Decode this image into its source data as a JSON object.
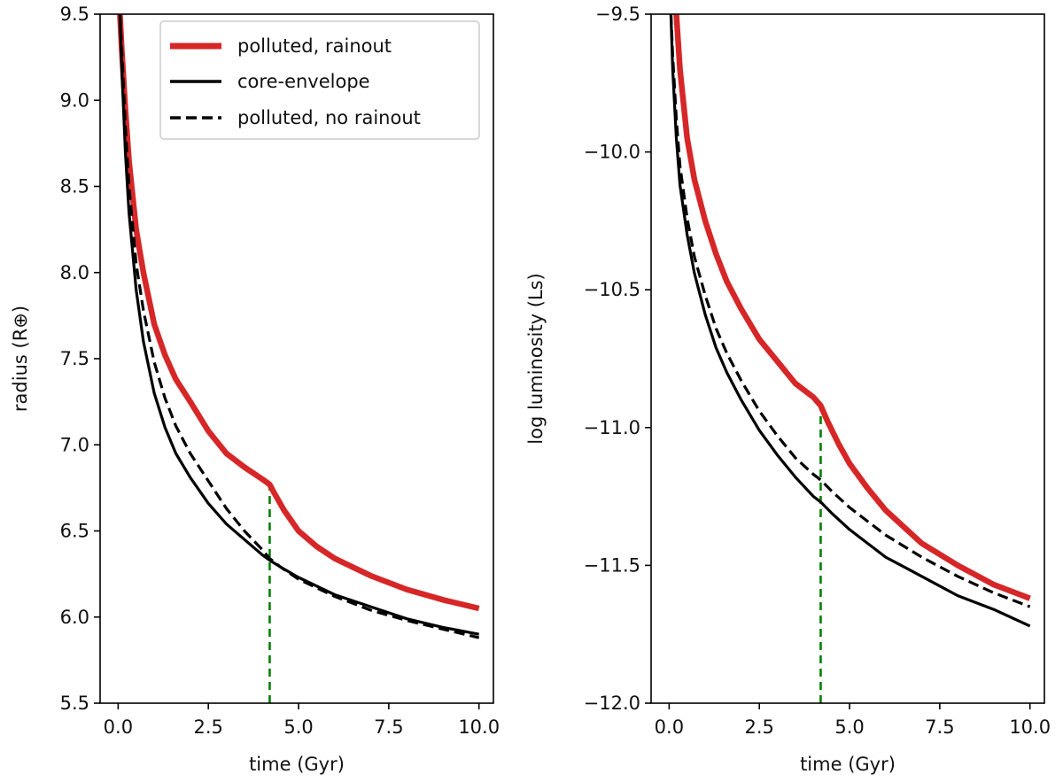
{
  "colors": {
    "rainout": "#d62728",
    "core_envelope": "#000000",
    "no_rainout": "#000000",
    "marker": "#008000",
    "axes": "#000000",
    "legend_border": "#cccccc"
  },
  "chart_data": [
    {
      "type": "line",
      "title": "",
      "xlabel": "time (Gyr)",
      "ylabel": "radius (R⊕)",
      "xlim": [
        -0.5,
        10.4
      ],
      "ylim": [
        5.5,
        9.5
      ],
      "xticks": [
        0.0,
        2.5,
        5.0,
        7.5,
        10.0
      ],
      "xtick_labels": [
        "0.0",
        "2.5",
        "5.0",
        "7.5",
        "10.0"
      ],
      "yticks": [
        5.5,
        6.0,
        6.5,
        7.0,
        7.5,
        8.0,
        8.5,
        9.0,
        9.5
      ],
      "ytick_labels": [
        "5.5",
        "6.0",
        "6.5",
        "7.0",
        "7.5",
        "8.0",
        "8.5",
        "9.0",
        "9.5"
      ],
      "legend": {
        "location": "upper-right",
        "entries": [
          {
            "label": "polluted, rainout",
            "series": "polluted_rainout"
          },
          {
            "label": "core-envelope",
            "series": "core_envelope"
          },
          {
            "label": "polluted, no rainout",
            "series": "polluted_no_rainout"
          }
        ]
      },
      "series": [
        {
          "id": "polluted_rainout",
          "name": "polluted, rainout",
          "style": "solid-thick",
          "x": [
            0.05,
            0.1,
            0.2,
            0.3,
            0.5,
            0.7,
            1.0,
            1.3,
            1.6,
            2.0,
            2.5,
            3.0,
            3.5,
            4.0,
            4.2,
            4.3,
            4.6,
            5.0,
            5.5,
            6.0,
            7.0,
            8.0,
            9.0,
            10.0
          ],
          "y": [
            9.5,
            9.3,
            8.95,
            8.65,
            8.25,
            8.0,
            7.7,
            7.52,
            7.38,
            7.25,
            7.08,
            6.95,
            6.87,
            6.8,
            6.77,
            6.73,
            6.62,
            6.5,
            6.41,
            6.34,
            6.24,
            6.16,
            6.1,
            6.05
          ]
        },
        {
          "id": "core_envelope",
          "name": "core-envelope",
          "style": "solid",
          "x": [
            0.05,
            0.1,
            0.2,
            0.3,
            0.5,
            0.7,
            1.0,
            1.3,
            1.6,
            2.0,
            2.5,
            3.0,
            3.5,
            4.0,
            4.2,
            4.5,
            5.0,
            6.0,
            7.0,
            8.0,
            9.0,
            10.0
          ],
          "y": [
            9.5,
            9.2,
            8.7,
            8.35,
            7.9,
            7.6,
            7.3,
            7.1,
            6.95,
            6.81,
            6.66,
            6.54,
            6.45,
            6.36,
            6.33,
            6.29,
            6.23,
            6.13,
            6.06,
            5.99,
            5.94,
            5.9
          ]
        },
        {
          "id": "polluted_no_rainout",
          "name": "polluted, no rainout",
          "style": "dashed",
          "x": [
            0.05,
            0.1,
            0.2,
            0.3,
            0.5,
            0.7,
            1.0,
            1.3,
            1.6,
            2.0,
            2.5,
            3.0,
            3.5,
            4.0,
            4.2,
            4.5,
            5.0,
            6.0,
            7.0,
            8.0,
            9.0,
            10.0
          ],
          "y": [
            9.5,
            9.3,
            8.85,
            8.5,
            8.05,
            7.78,
            7.48,
            7.27,
            7.11,
            6.95,
            6.79,
            6.63,
            6.5,
            6.39,
            6.34,
            6.29,
            6.22,
            6.12,
            6.04,
            5.98,
            5.93,
            5.88
          ]
        }
      ],
      "vline": {
        "x": 4.2,
        "y_from": 5.5,
        "y_to": 6.76,
        "style": "dashed"
      }
    },
    {
      "type": "line",
      "title": "",
      "xlabel": "time (Gyr)",
      "ylabel": "log luminosity (Ls)",
      "xlim": [
        -0.5,
        10.4
      ],
      "ylim": [
        -12.0,
        -9.5
      ],
      "xticks": [
        0.0,
        2.5,
        5.0,
        7.5,
        10.0
      ],
      "xtick_labels": [
        "0.0",
        "2.5",
        "5.0",
        "7.5",
        "10.0"
      ],
      "yticks": [
        -12.0,
        -11.5,
        -11.0,
        -10.5,
        -10.0,
        -9.5
      ],
      "ytick_labels": [
        "−12.0",
        "−11.5",
        "−11.0",
        "−10.5",
        "−10.0",
        "−9.5"
      ],
      "series": [
        {
          "id": "polluted_rainout",
          "name": "polluted, rainout",
          "style": "solid-thick",
          "x": [
            0.2,
            0.3,
            0.5,
            0.7,
            1.0,
            1.3,
            1.6,
            2.0,
            2.5,
            3.0,
            3.5,
            4.0,
            4.2,
            4.4,
            4.7,
            5.0,
            5.5,
            6.0,
            7.0,
            8.0,
            9.0,
            10.0
          ],
          "y": [
            -9.5,
            -9.7,
            -9.95,
            -10.1,
            -10.25,
            -10.37,
            -10.47,
            -10.57,
            -10.68,
            -10.76,
            -10.84,
            -10.89,
            -10.92,
            -10.98,
            -11.06,
            -11.13,
            -11.22,
            -11.3,
            -11.42,
            -11.5,
            -11.57,
            -11.62
          ]
        },
        {
          "id": "core_envelope",
          "name": "core-envelope",
          "style": "solid",
          "x": [
            0.05,
            0.1,
            0.2,
            0.3,
            0.5,
            0.7,
            1.0,
            1.3,
            1.6,
            2.0,
            2.5,
            3.0,
            3.5,
            4.0,
            4.2,
            4.5,
            5.0,
            6.0,
            7.0,
            8.0,
            9.0,
            10.0
          ],
          "y": [
            -9.5,
            -9.7,
            -9.95,
            -10.12,
            -10.3,
            -10.44,
            -10.59,
            -10.71,
            -10.8,
            -10.9,
            -11.01,
            -11.1,
            -11.18,
            -11.25,
            -11.27,
            -11.31,
            -11.37,
            -11.47,
            -11.54,
            -11.61,
            -11.66,
            -11.72
          ]
        },
        {
          "id": "polluted_no_rainout",
          "name": "polluted, no rainout",
          "style": "dashed",
          "x": [
            0.05,
            0.1,
            0.2,
            0.3,
            0.5,
            0.7,
            1.0,
            1.3,
            1.6,
            2.0,
            2.5,
            3.0,
            3.5,
            4.0,
            4.2,
            4.5,
            5.0,
            6.0,
            7.0,
            8.0,
            9.0,
            10.0
          ],
          "y": [
            -9.5,
            -9.65,
            -9.88,
            -10.05,
            -10.24,
            -10.38,
            -10.52,
            -10.64,
            -10.73,
            -10.83,
            -10.94,
            -11.03,
            -11.11,
            -11.17,
            -11.19,
            -11.23,
            -11.29,
            -11.39,
            -11.47,
            -11.54,
            -11.6,
            -11.65
          ]
        }
      ],
      "vline": {
        "x": 4.2,
        "y_from": -12.0,
        "y_to": -10.92,
        "style": "dashed"
      }
    }
  ]
}
